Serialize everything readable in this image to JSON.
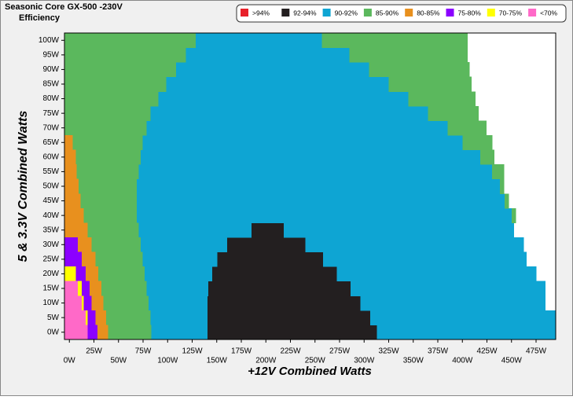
{
  "chart_data": {
    "type": "region",
    "title": "Seasonic  Core GX-500 -230V",
    "subtitle": "Efficiency",
    "x_label": "+12V Combined Watts",
    "y_label": "5 & 3.3V Combined Watts",
    "xlim": [
      -5,
      495
    ],
    "ylim": [
      -2.5,
      102.5
    ],
    "row_height": 5,
    "xticks": [
      {
        "value": 0,
        "label": "0W"
      },
      {
        "value": 25,
        "label": "25W"
      },
      {
        "value": 50,
        "label": "50W"
      },
      {
        "value": 75,
        "label": "75W"
      },
      {
        "value": 100,
        "label": "100W"
      },
      {
        "value": 125,
        "label": "125W"
      },
      {
        "value": 150,
        "label": "150W"
      },
      {
        "value": 175,
        "label": "175W"
      },
      {
        "value": 200,
        "label": "200W"
      },
      {
        "value": 225,
        "label": "225W"
      },
      {
        "value": 250,
        "label": "250W"
      },
      {
        "value": 275,
        "label": "275W"
      },
      {
        "value": 300,
        "label": "300W"
      },
      {
        "value": 325,
        "label": "325W"
      },
      {
        "value": 350,
        "label": "350W"
      },
      {
        "value": 375,
        "label": "375W"
      },
      {
        "value": 400,
        "label": "400W"
      },
      {
        "value": 425,
        "label": "425W"
      },
      {
        "value": 450,
        "label": "450W"
      },
      {
        "value": 475,
        "label": "475W"
      }
    ],
    "yticks": [
      {
        "value": 0,
        "label": "0W"
      },
      {
        "value": 5,
        "label": "5W"
      },
      {
        "value": 10,
        "label": "10W"
      },
      {
        "value": 15,
        "label": "15W"
      },
      {
        "value": 20,
        "label": "20W"
      },
      {
        "value": 25,
        "label": "25W"
      },
      {
        "value": 30,
        "label": "30W"
      },
      {
        "value": 35,
        "label": "35W"
      },
      {
        "value": 40,
        "label": "40W"
      },
      {
        "value": 45,
        "label": "45W"
      },
      {
        "value": 50,
        "label": "50W"
      },
      {
        "value": 55,
        "label": "55W"
      },
      {
        "value": 60,
        "label": "60W"
      },
      {
        "value": 65,
        "label": "65W"
      },
      {
        "value": 70,
        "label": "70W"
      },
      {
        "value": 75,
        "label": "75W"
      },
      {
        "value": 80,
        "label": "80W"
      },
      {
        "value": 85,
        "label": "85W"
      },
      {
        "value": 90,
        "label": "90W"
      },
      {
        "value": 95,
        "label": "95W"
      },
      {
        "value": 100,
        "label": "100W"
      }
    ],
    "series": [
      {
        "name": ">94%",
        "color": "#e8202a",
        "spans": []
      },
      {
        "name": "92-94%",
        "color": "#231f20",
        "spans": [
          [
            0,
            140,
            313
          ],
          [
            5,
            140,
            306
          ],
          [
            10,
            140,
            296
          ],
          [
            15,
            141,
            286
          ],
          [
            20,
            145,
            272
          ],
          [
            25,
            150,
            258
          ],
          [
            30,
            160,
            240
          ],
          [
            35,
            185,
            218
          ]
        ]
      },
      {
        "name": "90-92%",
        "color": "#0ea5d3",
        "spans": [
          [
            0,
            83,
            140
          ],
          [
            0,
            313,
            494
          ],
          [
            5,
            82,
            140
          ],
          [
            5,
            306,
            494
          ],
          [
            10,
            80,
            140
          ],
          [
            10,
            296,
            484
          ],
          [
            15,
            78,
            141
          ],
          [
            15,
            286,
            484
          ],
          [
            20,
            76,
            145
          ],
          [
            20,
            272,
            475
          ],
          [
            25,
            74,
            150
          ],
          [
            25,
            258,
            465
          ],
          [
            30,
            72,
            160
          ],
          [
            30,
            240,
            462
          ],
          [
            35,
            70,
            185
          ],
          [
            35,
            218,
            452
          ],
          [
            40,
            68,
            450
          ],
          [
            45,
            68,
            443
          ],
          [
            50,
            68,
            438
          ],
          [
            55,
            70,
            430
          ],
          [
            60,
            72,
            418
          ],
          [
            65,
            74,
            400
          ],
          [
            70,
            78,
            385
          ],
          [
            75,
            82,
            365
          ],
          [
            80,
            90,
            345
          ],
          [
            85,
            98,
            325
          ],
          [
            90,
            108,
            305
          ],
          [
            95,
            118,
            285
          ],
          [
            100,
            128,
            257
          ]
        ]
      },
      {
        "name": "85-90%",
        "color": "#5bb85d",
        "spans": [
          [
            0,
            39,
            83
          ],
          [
            5,
            37,
            82
          ],
          [
            10,
            34,
            80
          ],
          [
            15,
            32,
            78
          ],
          [
            20,
            29,
            76
          ],
          [
            25,
            26,
            74
          ],
          [
            30,
            22,
            72
          ],
          [
            35,
            18,
            70
          ],
          [
            40,
            14,
            68
          ],
          [
            40,
            450,
            454
          ],
          [
            45,
            11,
            68
          ],
          [
            45,
            443,
            447
          ],
          [
            50,
            9,
            68
          ],
          [
            50,
            438,
            442
          ],
          [
            55,
            7,
            70
          ],
          [
            55,
            430,
            442
          ],
          [
            60,
            6,
            72
          ],
          [
            60,
            418,
            432
          ],
          [
            65,
            3,
            74
          ],
          [
            65,
            400,
            430
          ],
          [
            70,
            -5,
            78
          ],
          [
            70,
            385,
            424
          ],
          [
            75,
            -5,
            82
          ],
          [
            75,
            365,
            416
          ],
          [
            80,
            -5,
            90
          ],
          [
            80,
            345,
            413
          ],
          [
            85,
            -5,
            98
          ],
          [
            85,
            325,
            409
          ],
          [
            90,
            -5,
            108
          ],
          [
            90,
            305,
            407
          ],
          [
            95,
            -5,
            118
          ],
          [
            95,
            285,
            405
          ],
          [
            100,
            -5,
            128
          ],
          [
            100,
            257,
            405
          ]
        ]
      },
      {
        "name": "80-85%",
        "color": "#e8901e",
        "spans": [
          [
            0,
            28,
            39
          ],
          [
            5,
            26,
            37
          ],
          [
            10,
            22,
            34
          ],
          [
            15,
            20,
            32
          ],
          [
            20,
            16,
            29
          ],
          [
            25,
            12,
            26
          ],
          [
            30,
            8,
            22
          ],
          [
            35,
            -5,
            18
          ],
          [
            40,
            -5,
            14
          ],
          [
            45,
            -5,
            11
          ],
          [
            50,
            -5,
            9
          ],
          [
            55,
            -5,
            7
          ],
          [
            60,
            -5,
            6
          ],
          [
            65,
            -5,
            3
          ]
        ]
      },
      {
        "name": "75-80%",
        "color": "#8b00ff",
        "spans": [
          [
            0,
            18,
            28
          ],
          [
            5,
            18,
            26
          ],
          [
            10,
            14,
            22
          ],
          [
            15,
            12,
            20
          ],
          [
            20,
            6,
            16
          ],
          [
            25,
            -5,
            12
          ],
          [
            30,
            -5,
            8
          ]
        ]
      },
      {
        "name": "70-75%",
        "color": "#ffff00",
        "spans": [
          [
            5,
            16,
            18
          ],
          [
            10,
            12,
            14
          ],
          [
            15,
            8,
            12
          ],
          [
            20,
            -5,
            6
          ]
        ]
      },
      {
        "name": "<70%",
        "color": "#ff69c8",
        "spans": [
          [
            0,
            -5,
            18
          ],
          [
            5,
            -5,
            16
          ],
          [
            10,
            -5,
            12
          ],
          [
            15,
            -5,
            8
          ]
        ]
      }
    ]
  }
}
